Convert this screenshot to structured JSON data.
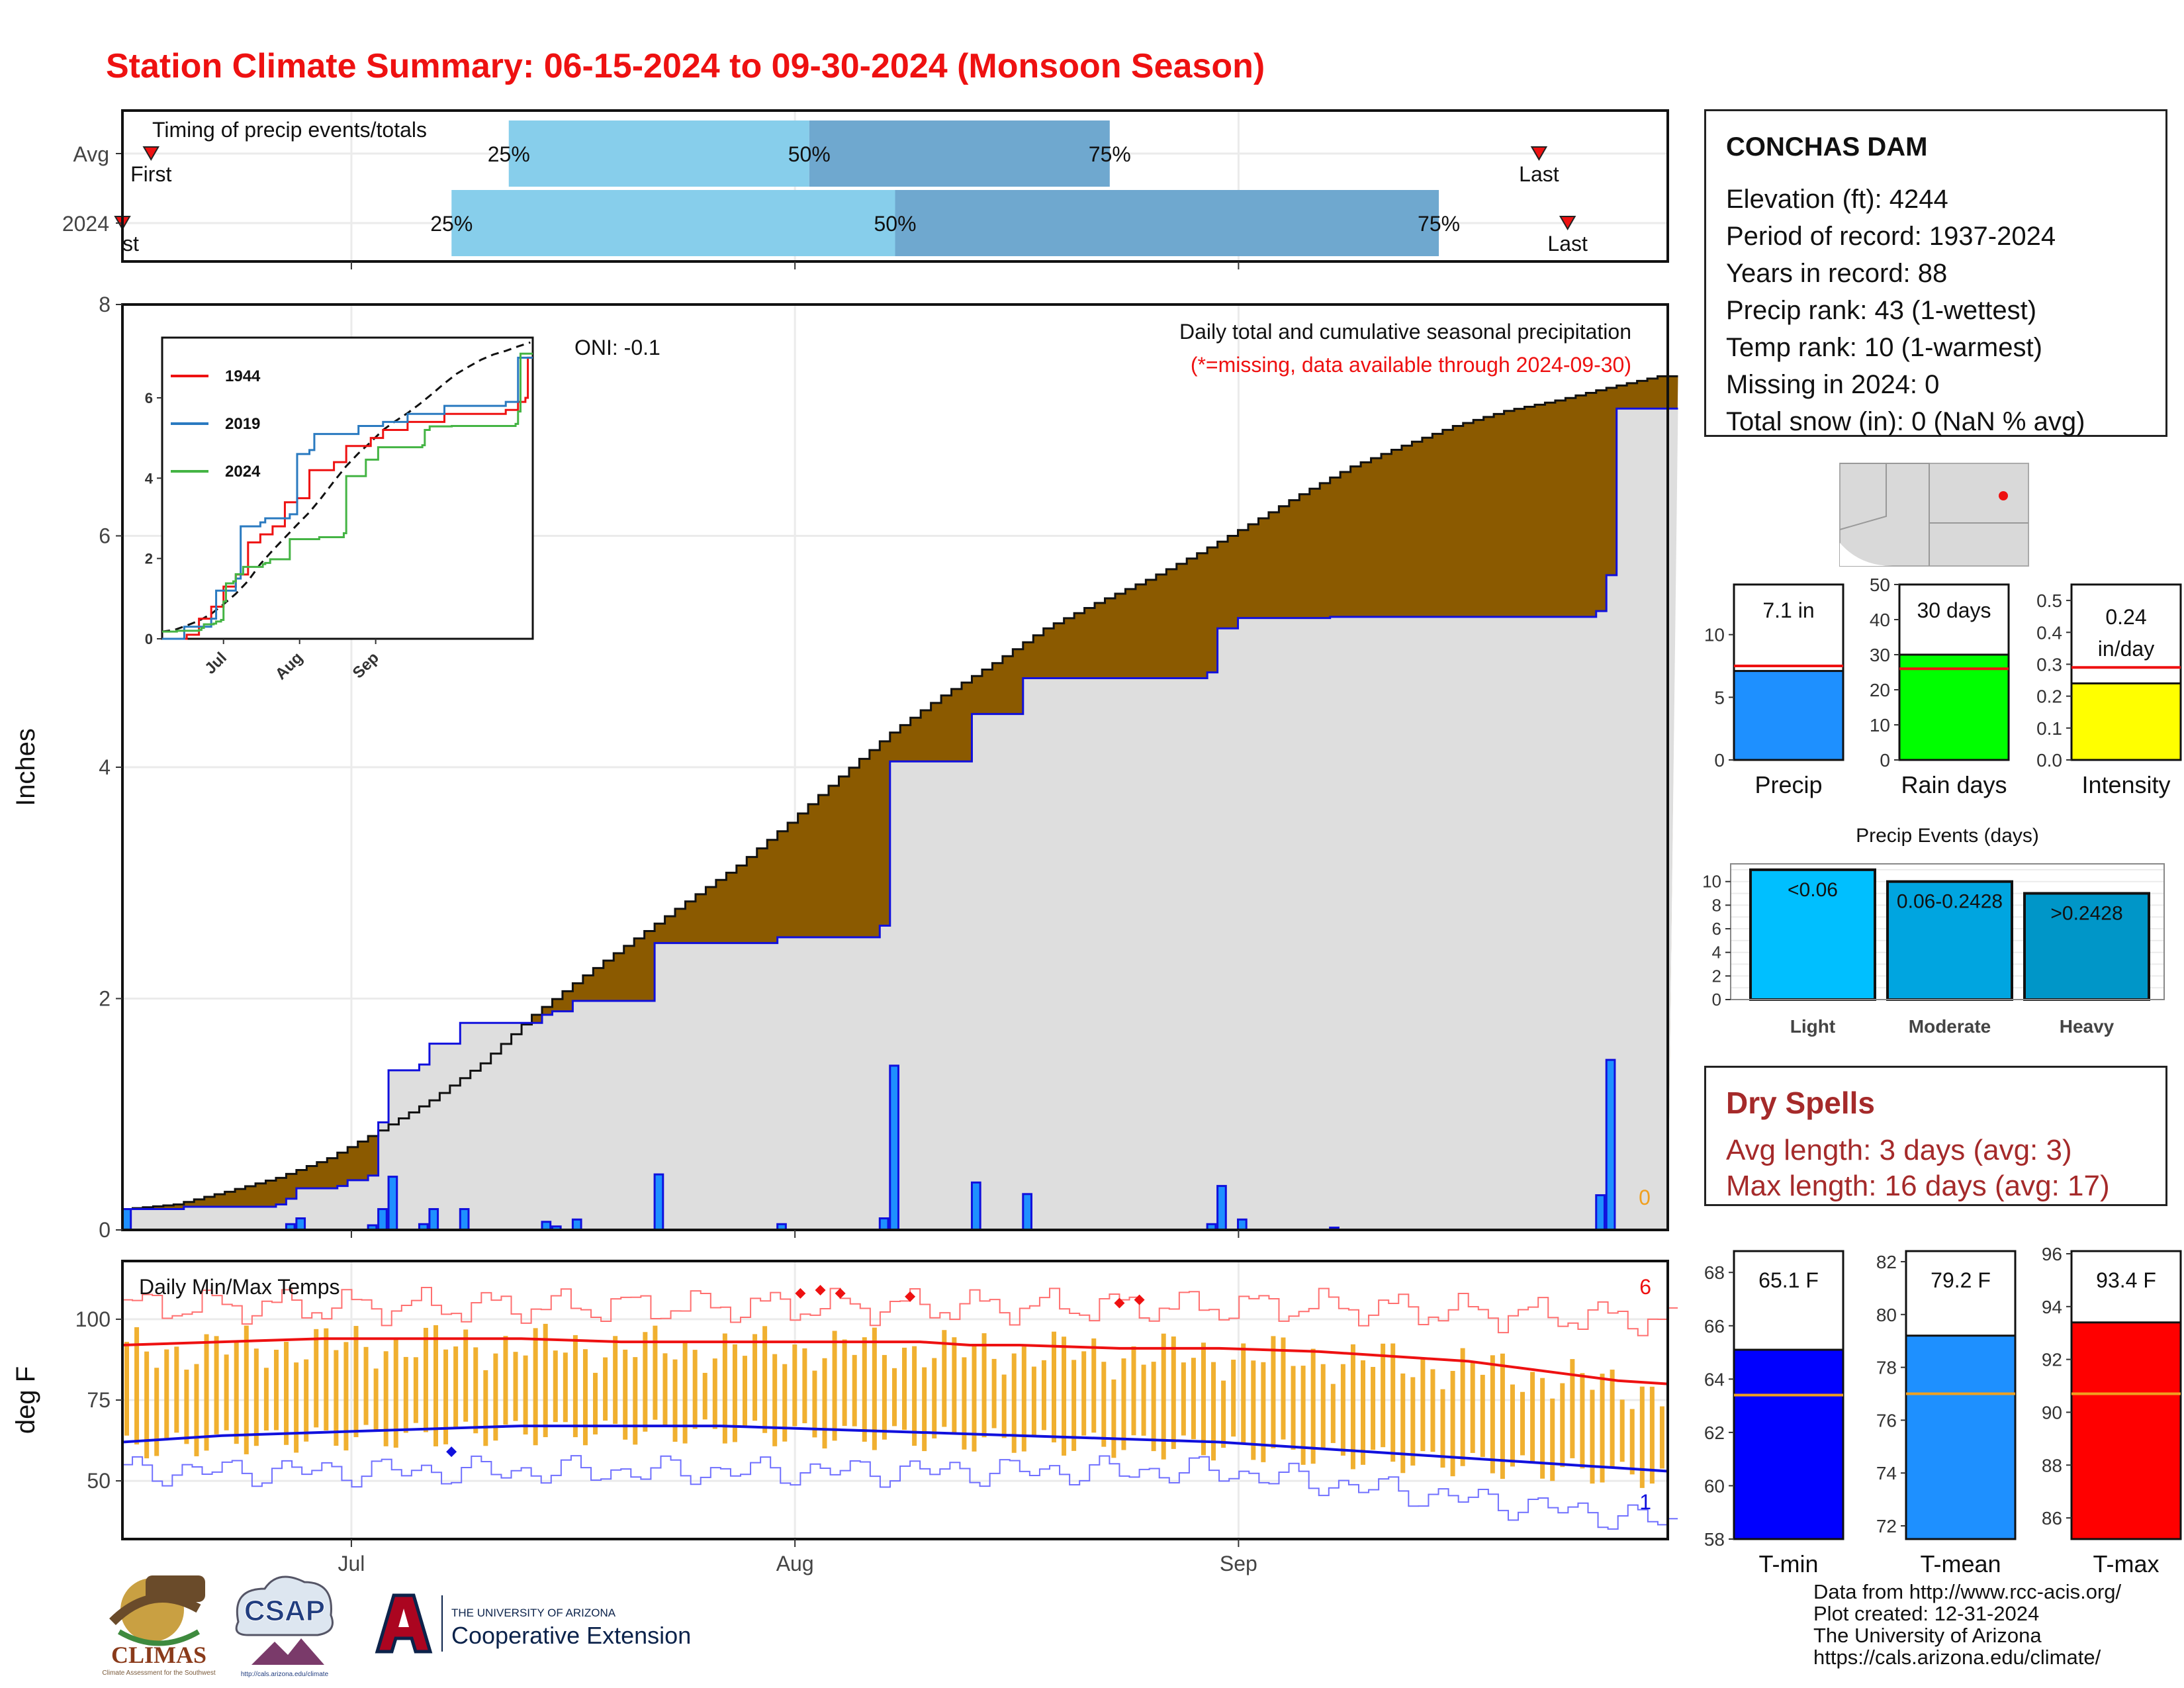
{
  "title": "Station Climate Summary: 06-15-2024 to 09-30-2024 (Monsoon Season)",
  "colors": {
    "title": "#ee1111",
    "cum_fill": "#8b5a00",
    "cum_green": "#1a8a1a",
    "cum_bg": "#dedede",
    "daily_bar": "#1e90ff",
    "tmax_avg": "#ee1111",
    "tmin_avg": "#1010dd",
    "range_bar": "#f0b030",
    "q1": "#87ceeb",
    "q2": "#6fa8cf"
  },
  "station": {
    "name": "CONCHAS DAM",
    "lines": [
      "Elevation (ft): 4244",
      "Period of record: 1937-2024",
      "Years in record: 88",
      "Precip rank: 43 (1-wettest)",
      "Temp rank: 10 (1-warmest)",
      "Missing in 2024: 0",
      "Total snow (in): 0 (NaN % avg)"
    ]
  },
  "dry_spells": {
    "title": "Dry Spells",
    "avg": "Avg length: 3 days (avg: 3)",
    "max": "Max length: 16 days (avg: 17)"
  },
  "credits": [
    "Data from http://www.rcc-acis.org/",
    "Plot created: 12-31-2024",
    "The University of Arizona",
    "https://cals.arizona.edu/climate/"
  ],
  "logos": {
    "climas": "CLIMAS",
    "climas_sub": "Climate Assessment for the Southwest",
    "csap": "CSAP",
    "csap_url": "http://cals.arizona.edu/climate",
    "ua_line1": "THE UNIVERSITY OF ARIZONA",
    "ua_line2": "Cooperative Extension"
  },
  "chart_data": [
    {
      "type": "bar",
      "name_id": "timing",
      "title": "Timing of precip events/totals",
      "rows": [
        {
          "label": "Avg",
          "first": "06-17",
          "q25": "07-12",
          "q50": "08-02",
          "q75": "08-23",
          "last": "09-22"
        },
        {
          "label": "2024",
          "first": "06-15",
          "q25": "07-08",
          "q50": "08-08",
          "q75": "09-15",
          "last": "09-24"
        }
      ],
      "markers": {
        "first": "First",
        "last": "Last",
        "first_cut": "st"
      },
      "quartile_labels": [
        "25%",
        "50%",
        "75%"
      ]
    },
    {
      "type": "area",
      "name_id": "cumulative",
      "title": "Daily total and cumulative seasonal precipitation",
      "subtitle": "(*=missing, data available through 2024-09-30)",
      "ylabel": "Inches",
      "ylim": [
        0,
        8
      ],
      "yticks": [
        0,
        2,
        4,
        6,
        8
      ],
      "oni": "ONI: -0.1",
      "missing_count": "0",
      "xticks": [
        "Jul",
        "Aug",
        "Sep"
      ],
      "avg_cumulative": [
        [
          0,
          0.18
        ],
        [
          5,
          0.22
        ],
        [
          10,
          0.33
        ],
        [
          15,
          0.45
        ],
        [
          20,
          0.62
        ],
        [
          25,
          0.86
        ],
        [
          30,
          1.12
        ],
        [
          35,
          1.44
        ],
        [
          40,
          1.86
        ],
        [
          45,
          2.2
        ],
        [
          50,
          2.52
        ],
        [
          55,
          2.84
        ],
        [
          60,
          3.15
        ],
        [
          65,
          3.52
        ],
        [
          70,
          3.92
        ],
        [
          75,
          4.3
        ],
        [
          80,
          4.62
        ],
        [
          85,
          4.9
        ],
        [
          90,
          5.2
        ],
        [
          95,
          5.42
        ],
        [
          100,
          5.62
        ],
        [
          105,
          5.85
        ],
        [
          110,
          6.1
        ],
        [
          115,
          6.36
        ],
        [
          120,
          6.6
        ],
        [
          125,
          6.78
        ],
        [
          130,
          6.95
        ],
        [
          135,
          7.08
        ],
        [
          140,
          7.17
        ],
        [
          145,
          7.28
        ],
        [
          150,
          7.38
        ]
      ],
      "cumulative_2024": [
        [
          0,
          0.18
        ],
        [
          3,
          0.18
        ],
        [
          6,
          0.2
        ],
        [
          15,
          0.22
        ],
        [
          16,
          0.27
        ],
        [
          17,
          0.36
        ],
        [
          21,
          0.38
        ],
        [
          22,
          0.43
        ],
        [
          24,
          0.47
        ],
        [
          25,
          0.93
        ],
        [
          26,
          1.38
        ],
        [
          29,
          1.43
        ],
        [
          30,
          1.61
        ],
        [
          33,
          1.79
        ],
        [
          41,
          1.86
        ],
        [
          42,
          1.89
        ],
        [
          44,
          1.98
        ],
        [
          52,
          2.48
        ],
        [
          59,
          2.48
        ],
        [
          63,
          2.48
        ],
        [
          64,
          2.53
        ],
        [
          73,
          2.53
        ],
        [
          74,
          2.63
        ],
        [
          75,
          4.05
        ],
        [
          76,
          4.05
        ],
        [
          83,
          4.46
        ],
        [
          88,
          4.77
        ],
        [
          106,
          4.82
        ],
        [
          107,
          5.2
        ],
        [
          109,
          5.29
        ],
        [
          118,
          5.3
        ],
        [
          144,
          5.35
        ],
        [
          145,
          5.66
        ],
        [
          146,
          7.1
        ],
        [
          151,
          7.1
        ]
      ],
      "daily_2024": [
        [
          0,
          0.18
        ],
        [
          16,
          0.05
        ],
        [
          17,
          0.1
        ],
        [
          24,
          0.04
        ],
        [
          25,
          0.18
        ],
        [
          26,
          0.46
        ],
        [
          29,
          0.05
        ],
        [
          30,
          0.18
        ],
        [
          33,
          0.18
        ],
        [
          41,
          0.07
        ],
        [
          42,
          0.03
        ],
        [
          44,
          0.09
        ],
        [
          52,
          0.48
        ],
        [
          64,
          0.05
        ],
        [
          74,
          0.1
        ],
        [
          75,
          1.42
        ],
        [
          83,
          0.41
        ],
        [
          88,
          0.31
        ],
        [
          106,
          0.05
        ],
        [
          107,
          0.38
        ],
        [
          109,
          0.09
        ],
        [
          118,
          0.02
        ],
        [
          144,
          0.3
        ],
        [
          145,
          1.47
        ]
      ]
    },
    {
      "type": "line",
      "name_id": "inset",
      "series": [
        {
          "name": "1944",
          "color": "#ee1111"
        },
        {
          "name": "2019",
          "color": "#2a7ac0"
        },
        {
          "name": "2024",
          "color": "#44b444"
        }
      ],
      "ylim": [
        0,
        7.5
      ],
      "yticks": [
        0,
        2,
        4,
        6
      ],
      "xticks": [
        "Jul",
        "Aug",
        "Sep"
      ]
    },
    {
      "type": "line",
      "name_id": "temps",
      "title": "Daily Min/Max Temps",
      "ylabel": "deg F",
      "ylim": [
        32,
        118
      ],
      "yticks": [
        50,
        75,
        100
      ],
      "xticks": [
        "Jul",
        "Aug",
        "Sep"
      ],
      "record_high_count": "6",
      "record_low_count": "1",
      "avg_max": [
        [
          0,
          92
        ],
        [
          10,
          93
        ],
        [
          20,
          94
        ],
        [
          30,
          94
        ],
        [
          40,
          94
        ],
        [
          50,
          93
        ],
        [
          60,
          93
        ],
        [
          70,
          93
        ],
        [
          80,
          93
        ],
        [
          85,
          92
        ],
        [
          90,
          92
        ],
        [
          100,
          91
        ],
        [
          110,
          91
        ],
        [
          120,
          90
        ],
        [
          130,
          88
        ],
        [
          135,
          87
        ],
        [
          140,
          85
        ],
        [
          145,
          83
        ],
        [
          150,
          81
        ],
        [
          155,
          80
        ]
      ],
      "avg_min": [
        [
          0,
          62
        ],
        [
          10,
          64
        ],
        [
          20,
          65
        ],
        [
          30,
          66
        ],
        [
          40,
          67
        ],
        [
          50,
          67
        ],
        [
          60,
          67
        ],
        [
          70,
          66
        ],
        [
          80,
          65
        ],
        [
          90,
          64
        ],
        [
          100,
          63
        ],
        [
          110,
          62
        ],
        [
          120,
          60
        ],
        [
          130,
          58
        ],
        [
          140,
          56
        ],
        [
          150,
          54
        ],
        [
          155,
          53
        ]
      ]
    },
    {
      "type": "bar",
      "name_id": "totals",
      "panels": [
        {
          "label": "Precip",
          "value": 7.1,
          "avg": 7.5,
          "display": "7.1 in",
          "ylim": [
            0,
            14
          ],
          "yticks": [
            0,
            5,
            10
          ],
          "color": "#1e90ff"
        },
        {
          "label": "Rain days",
          "value": 30,
          "avg": 26,
          "display": "30 days",
          "ylim": [
            0,
            50
          ],
          "yticks": [
            0,
            10,
            20,
            30,
            40,
            50
          ],
          "color": "#00ff00"
        },
        {
          "label": "Intensity",
          "value": 0.24,
          "avg": 0.29,
          "display": "0.24 in/day",
          "ylim": [
            0,
            0.55
          ],
          "yticks": [
            0.0,
            0.1,
            0.2,
            0.3,
            0.4,
            0.5
          ],
          "color": "#ffff00"
        }
      ]
    },
    {
      "type": "bar",
      "name_id": "events",
      "title": "Precip Events (days)",
      "categories": [
        "Light",
        "Moderate",
        "Heavy"
      ],
      "values": [
        11,
        10,
        9
      ],
      "bin_labels": [
        "<0.06",
        "0.06-0.2428",
        ">0.2428"
      ],
      "colors": [
        "#00bfff",
        "#00a5e0",
        "#0096c8"
      ],
      "ylim": [
        0,
        11.5
      ],
      "yticks": [
        0,
        2,
        4,
        6,
        8,
        10
      ]
    },
    {
      "type": "bar",
      "name_id": "temp_summary",
      "panels": [
        {
          "label": "T-min",
          "value": 65.1,
          "avg": 63.4,
          "display": "65.1 F",
          "ylim": [
            58,
            68.8
          ],
          "yticks": [
            58,
            60,
            62,
            64,
            66,
            68
          ],
          "color": "#0000ff"
        },
        {
          "label": "T-mean",
          "value": 79.2,
          "avg": 77.0,
          "display": "79.2 F",
          "ylim": [
            71.5,
            82.4
          ],
          "yticks": [
            72,
            74,
            76,
            78,
            80,
            82
          ],
          "color": "#1e90ff"
        },
        {
          "label": "T-max",
          "value": 93.4,
          "avg": 90.7,
          "display": "93.4 F",
          "ylim": [
            85.2,
            96.1
          ],
          "yticks": [
            86,
            88,
            90,
            92,
            94,
            96
          ],
          "color": "#ff0000"
        }
      ]
    }
  ]
}
